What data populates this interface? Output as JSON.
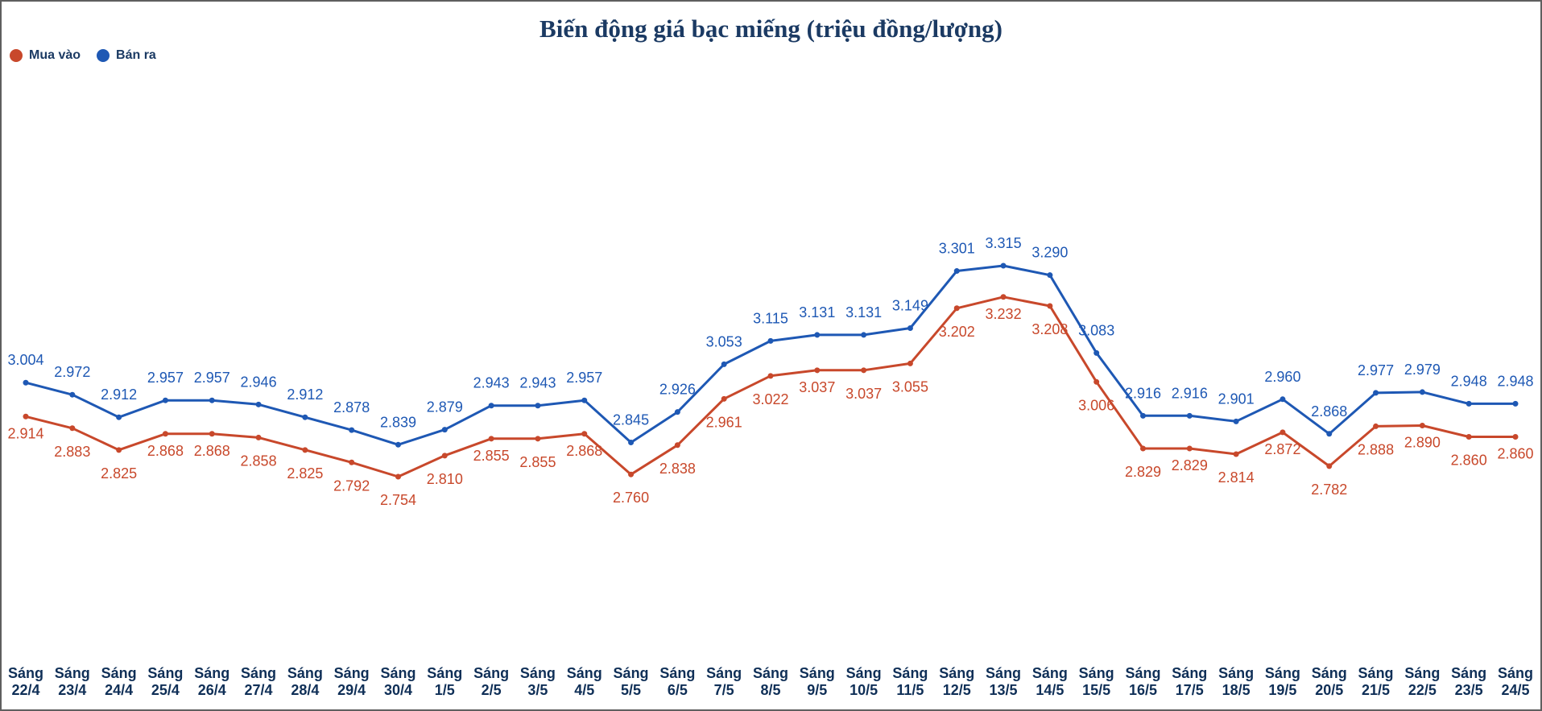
{
  "colors": {
    "buy": "#c8482b",
    "sell": "#1e58b4",
    "title": "#1b3a63",
    "category": "#0f2f57"
  },
  "chart_data": {
    "type": "line",
    "title": "Biến động giá bạc miếng (triệu đồng/lượng)",
    "xlabel": "",
    "ylabel": "",
    "grid": false,
    "legend_position": "top-left",
    "categories": [
      "Sáng 22/4",
      "Sáng 23/4",
      "Sáng 24/4",
      "Sáng 25/4",
      "Sáng 26/4",
      "Sáng 27/4",
      "Sáng 28/4",
      "Sáng 29/4",
      "Sáng 30/4",
      "Sáng 1/5",
      "Sáng 2/5",
      "Sáng 3/5",
      "Sáng 4/5",
      "Sáng 5/5",
      "Sáng 6/5",
      "Sáng 7/5",
      "Sáng 8/5",
      "Sáng 9/5",
      "Sáng 10/5",
      "Sáng 11/5",
      "Sáng 12/5",
      "Sáng 13/5",
      "Sáng 14/5",
      "Sáng 15/5",
      "Sáng 16/5",
      "Sáng 17/5",
      "Sáng 18/5",
      "Sáng 19/5",
      "Sáng 20/5",
      "Sáng 21/5",
      "Sáng 22/5",
      "Sáng 23/5",
      "Sáng 24/5"
    ],
    "series": [
      {
        "name": "Mua vào",
        "color": "#c8482b",
        "values": [
          2.914,
          2.883,
          2.825,
          2.868,
          2.868,
          2.858,
          2.825,
          2.792,
          2.754,
          2.81,
          2.855,
          2.855,
          2.868,
          2.76,
          2.838,
          2.961,
          3.022,
          3.037,
          3.037,
          3.055,
          3.202,
          3.232,
          3.208,
          3.006,
          2.829,
          2.829,
          2.814,
          2.872,
          2.782,
          2.888,
          2.89,
          2.86,
          2.86
        ],
        "labels": [
          "2.914",
          "2.883",
          "2.825",
          "2.868",
          "2.868",
          "2.858",
          "2.825",
          "2.792",
          "2.754",
          "2.810",
          "2.855",
          "2.855",
          "2.868",
          "2.760",
          "2.838",
          "2.961",
          "3.022",
          "3.037",
          "3.037",
          "3.055",
          "3.202",
          "3.232",
          "3.208",
          "3.006",
          "2.829",
          "2.829",
          "2.814",
          "2.872",
          "2.782",
          "2.888",
          "2.890",
          "2.860",
          "2.860"
        ]
      },
      {
        "name": "Bán ra",
        "color": "#1e58b4",
        "values": [
          3.004,
          2.972,
          2.912,
          2.957,
          2.957,
          2.946,
          2.912,
          2.878,
          2.839,
          2.879,
          2.943,
          2.943,
          2.957,
          2.845,
          2.926,
          3.053,
          3.115,
          3.131,
          3.131,
          3.149,
          3.301,
          3.315,
          3.29,
          3.083,
          2.916,
          2.916,
          2.901,
          2.96,
          2.868,
          2.977,
          2.979,
          2.948,
          2.948
        ],
        "labels": [
          "3.004",
          "2.972",
          "2.912",
          "2.957",
          "2.957",
          "2.946",
          "2.912",
          "2.878",
          "2.839",
          "2.879",
          "2.943",
          "2.943",
          "2.957",
          "2.845",
          "2.926",
          "3.053",
          "3.115",
          "3.131",
          "3.131",
          "3.149",
          "3.301",
          "3.315",
          "3.290",
          "3.083",
          "2.916",
          "2.916",
          "2.901",
          "2.960",
          "2.868",
          "2.977",
          "2.979",
          "2.948",
          "2.948"
        ]
      }
    ]
  }
}
